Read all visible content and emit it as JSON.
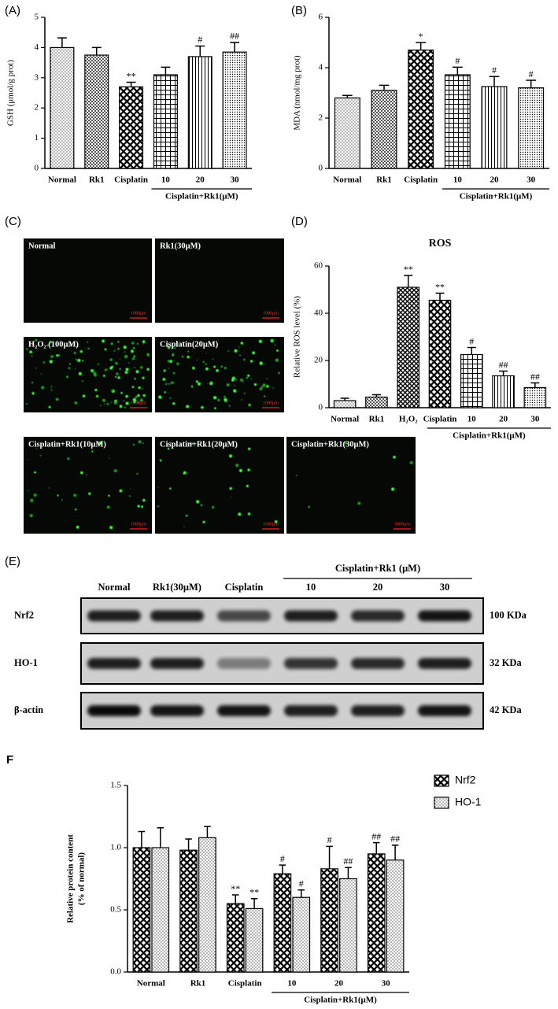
{
  "panel_labels": {
    "a": "(A)",
    "b": "(B)",
    "c": "(C)",
    "d": "(D)",
    "e": "(E)",
    "f": "F"
  },
  "chart_data": [
    {
      "type": "bar",
      "ylabel": "GSH (μmol/g prot)",
      "categories": [
        "Normal",
        "Rk1",
        "Cisplatin",
        "10",
        "20",
        "30"
      ],
      "group_label": "Cisplatin+Rk1(μM)",
      "values": [
        4.0,
        3.75,
        2.7,
        3.1,
        3.7,
        3.85
      ],
      "errors": [
        0.32,
        0.25,
        0.15,
        0.25,
        0.35,
        0.32
      ],
      "annotations": [
        null,
        null,
        "**",
        null,
        "#",
        "##"
      ],
      "ylim": [
        0,
        5
      ],
      "yticks": [
        0,
        1,
        2,
        3,
        4,
        5
      ]
    },
    {
      "type": "bar",
      "ylabel": "MDA (nmol/mg prot)",
      "categories": [
        "Normal",
        "Rk1",
        "Cisplatin",
        "10",
        "20",
        "30"
      ],
      "group_label": "Cisplatin+Rk1(μM)",
      "values": [
        2.8,
        3.1,
        4.7,
        3.72,
        3.25,
        3.2
      ],
      "errors": [
        0.1,
        0.2,
        0.3,
        0.3,
        0.4,
        0.3
      ],
      "annotations": [
        null,
        null,
        "*",
        "#",
        "#",
        "#"
      ],
      "ylim": [
        0,
        6
      ],
      "yticks": [
        0,
        2,
        4,
        6
      ]
    },
    {
      "type": "bar",
      "title": "ROS",
      "ylabel": "Relative ROS level (%)",
      "categories": [
        "Normal",
        "Rk1",
        "H₂O₂",
        "Cisplatin",
        "10",
        "20",
        "30"
      ],
      "group_label": "Cisplatin+Rk1(μM)",
      "values": [
        3,
        4.5,
        51,
        45.5,
        22.5,
        13.5,
        8.5
      ],
      "errors": [
        1,
        1,
        5,
        3,
        3,
        2,
        2
      ],
      "annotations": [
        null,
        null,
        "**",
        "**",
        "#",
        "##",
        "##"
      ],
      "ylim": [
        0,
        60
      ],
      "yticks": [
        0,
        20,
        40,
        60
      ]
    },
    {
      "type": "bar",
      "ylabel": [
        "Relative protein content",
        "(% of normal)"
      ],
      "categories": [
        "Normal",
        "Rk1",
        "Cisplatin",
        "10",
        "20",
        "30"
      ],
      "group_label": "Cisplatin+Rk1(μM)",
      "series": [
        {
          "name": "Nrf2",
          "values": [
            1.0,
            0.98,
            0.55,
            0.79,
            0.83,
            0.95
          ],
          "errors": [
            0.13,
            0.09,
            0.07,
            0.07,
            0.18,
            0.09
          ],
          "annotations": [
            null,
            null,
            "**",
            "#",
            "#",
            "##"
          ]
        },
        {
          "name": "HO-1",
          "values": [
            1.0,
            1.08,
            0.51,
            0.6,
            0.75,
            0.9
          ],
          "errors": [
            0.16,
            0.09,
            0.08,
            0.06,
            0.09,
            0.12
          ],
          "annotations": [
            null,
            null,
            "**",
            "#",
            "##",
            "##"
          ]
        }
      ],
      "legend": "right",
      "ylim": [
        0,
        1.5
      ],
      "yticks": [
        {
          "value": 0,
          "label": "0.0"
        },
        0.5,
        {
          "value": 1,
          "label": "1.0"
        },
        1.5
      ]
    }
  ],
  "images": {
    "labels": [
      "Normal",
      "Rk1(30μM)",
      "H₂O₂ (100μM)",
      "Cisplatin(20μM)",
      "Cisplatin+Rk1(10μM)",
      "Cisplatin+Rk1(20μM)",
      "Cisplatin+Rk1(30μM)"
    ],
    "scale_bar": "1000μm"
  },
  "blot": {
    "columns": [
      "Normal",
      "Rk1(30μM)",
      "Cisplatin",
      "10",
      "20",
      "30"
    ],
    "group_label": "Cisplatin+Rk1 (μM)",
    "rows": [
      {
        "label": "Nrf2",
        "size": "100 KDa"
      },
      {
        "label": "HO-1",
        "size": "32 KDa"
      },
      {
        "label": "β-actin",
        "size": "42 KDa"
      }
    ]
  }
}
